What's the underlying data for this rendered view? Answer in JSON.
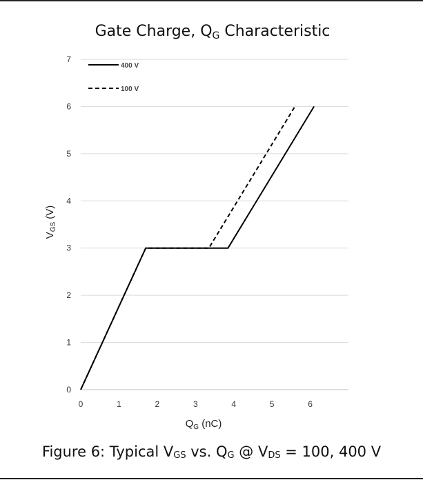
{
  "chart_data": {
    "type": "line",
    "title": "Gate Charge, Q",
    "title_sub": "G",
    "title_suffix": " Characteristic",
    "xlabel": "Q",
    "xlabel_sub": "G",
    "xlabel_suffix": " (nC)",
    "ylabel": "V",
    "ylabel_sub": "GS",
    "ylabel_suffix": " (V)",
    "xlim": [
      0,
      7
    ],
    "ylim": [
      0,
      7
    ],
    "x_ticks": [
      0,
      1,
      2,
      3,
      4,
      5,
      6
    ],
    "y_ticks": [
      0,
      1,
      2,
      3,
      4,
      5,
      6,
      7
    ],
    "grid": "horizontal",
    "legend_position": "top-left",
    "series": [
      {
        "name": "400 V",
        "style": "solid",
        "color": "#000000",
        "x": [
          0,
          1.7,
          3.85,
          6.1
        ],
        "y": [
          0,
          3,
          3,
          6
        ]
      },
      {
        "name": "100 V",
        "style": "dashed",
        "color": "#000000",
        "x": [
          0,
          1.7,
          3.35,
          5.6
        ],
        "y": [
          0,
          3,
          3,
          6
        ]
      }
    ]
  },
  "caption": {
    "prefix": "Figure 6: Typical V",
    "sub1": "GS",
    "mid1": " vs. Q",
    "sub2": "G",
    "mid2": " @ V",
    "sub3": "DS",
    "suffix": " = 100, 400 V"
  }
}
